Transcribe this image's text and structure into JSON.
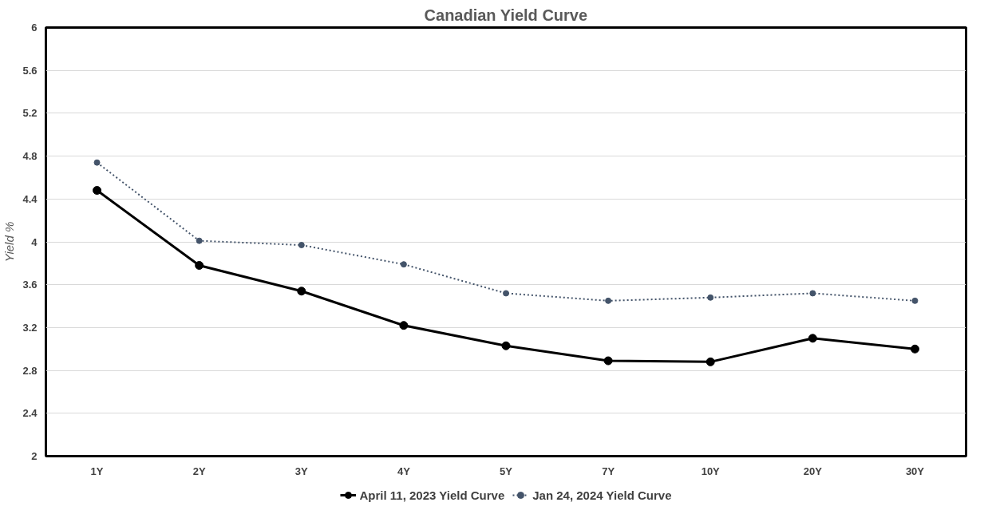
{
  "chart_data": {
    "type": "line",
    "title": "Canadian Yield Curve",
    "ylabel": "Yield %",
    "categories": [
      "1Y",
      "2Y",
      "3Y",
      "4Y",
      "5Y",
      "7Y",
      "10Y",
      "20Y",
      "30Y"
    ],
    "ylim": [
      2,
      6
    ],
    "yticks": [
      2,
      2.4,
      2.8,
      3.2,
      3.6,
      4,
      4.4,
      4.8,
      5.2,
      5.6,
      6
    ],
    "grid": "y",
    "legend": "bottom",
    "marker": "circle",
    "series": [
      {
        "name": "April 11, 2023 Yield Curve",
        "color": "#000000",
        "line_style": "solid",
        "values": [
          4.48,
          3.78,
          3.54,
          3.22,
          3.03,
          2.89,
          2.88,
          3.1,
          3.0
        ]
      },
      {
        "name": "Jan 24, 2024 Yield Curve",
        "color": "#44546a",
        "line_style": "dotted",
        "values": [
          4.74,
          4.01,
          3.97,
          3.79,
          3.52,
          3.45,
          3.48,
          3.52,
          3.45
        ]
      }
    ]
  }
}
